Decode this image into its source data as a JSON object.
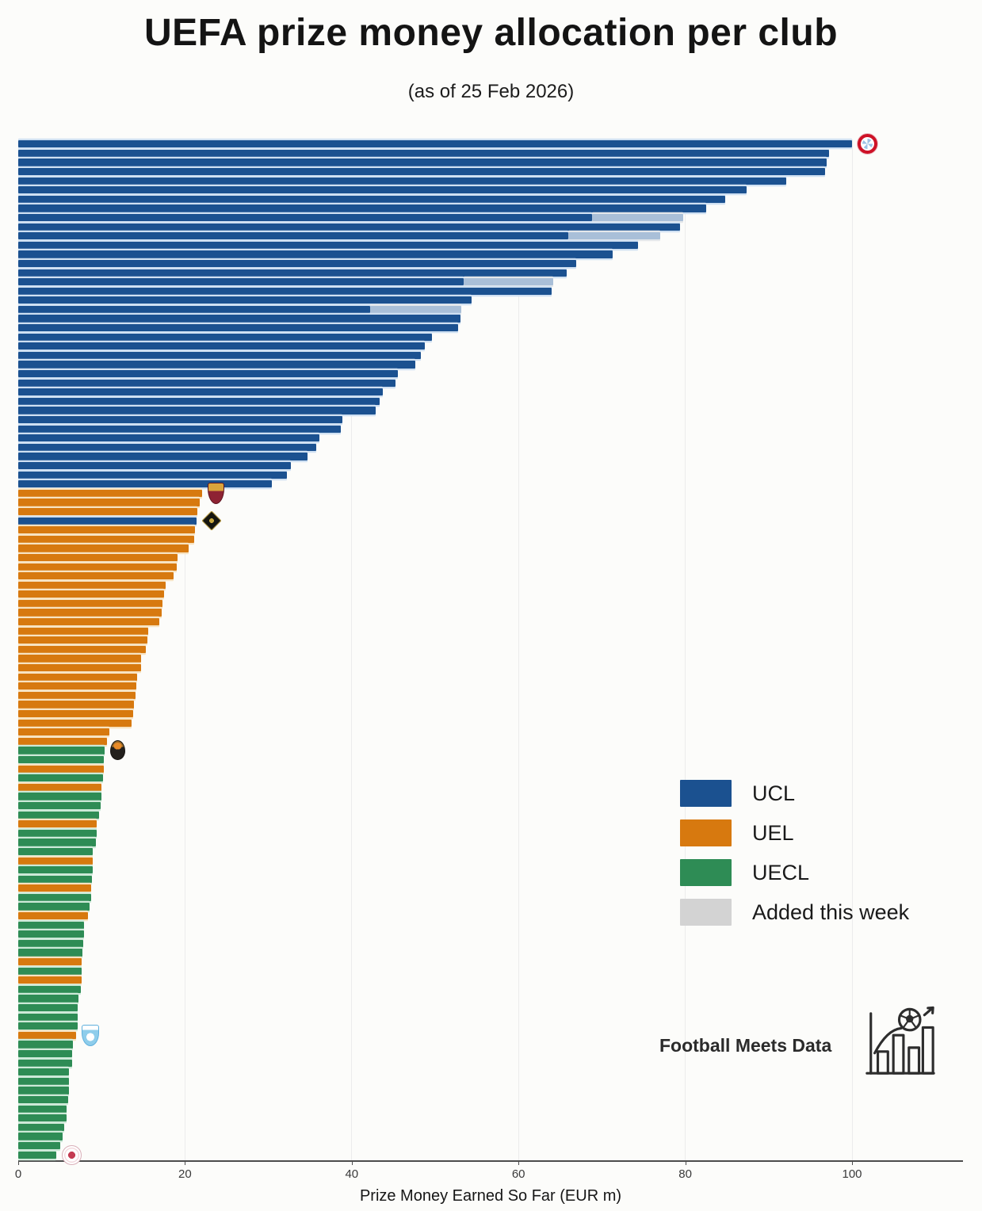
{
  "header": {
    "title": "UEFA prize money allocation per club",
    "subtitle": "(as of 25 Feb 2026)"
  },
  "footer": {
    "brand": "Football Meets Data"
  },
  "colors": {
    "UCL": "#1b5190",
    "UEL": "#d7790f",
    "UECL": "#2e8c55",
    "added_legend": "#d3d3d3",
    "added_segment": "#a9bfd8",
    "gap_tint_UCL": "#cfe0f2",
    "gap_tint_UEL": "#f7e3c2",
    "gap_tint_UECL": "#cde9d8",
    "gap_tint_added": "#e4e7ea",
    "axis_line": "#4c4c4c",
    "gridline": "#ececec"
  },
  "legend": [
    {
      "label": "UCL",
      "color": "#1b5190"
    },
    {
      "label": "UEL",
      "color": "#d7790f"
    },
    {
      "label": "UECL",
      "color": "#2e8c55"
    },
    {
      "label": "Added this week",
      "color": "#d3d3d3"
    }
  ],
  "axis": {
    "label": "Prize Money Earned So Far (EUR m)",
    "ticks": [
      0,
      20,
      40,
      60,
      80,
      100
    ],
    "max": 113
  },
  "chart_data": {
    "type": "bar",
    "orientation": "horizontal",
    "title": "UEFA prize money allocation per club",
    "subtitle": "(as of 25 Feb 2026)",
    "xlabel": "Prize Money Earned So Far (EUR m)",
    "xlim": [
      0,
      113
    ],
    "grid": "vertical, every 20 EUR m",
    "legend_position": "center-right",
    "series_legend": [
      "UCL",
      "UEL",
      "UECL",
      "Added this week"
    ],
    "note": "Each bar is one club, sorted by total prize money; 'added' is the light segment earned this week; logos mark selected clubs.",
    "bars": [
      {
        "comp": "UCL",
        "value": 100.0,
        "added": 0,
        "logo": "bayern-munich"
      },
      {
        "comp": "UCL",
        "value": 97.2,
        "added": 0
      },
      {
        "comp": "UCL",
        "value": 97.0,
        "added": 0
      },
      {
        "comp": "UCL",
        "value": 96.8,
        "added": 0
      },
      {
        "comp": "UCL",
        "value": 92.1,
        "added": 0
      },
      {
        "comp": "UCL",
        "value": 87.4,
        "added": 0
      },
      {
        "comp": "UCL",
        "value": 84.8,
        "added": 0
      },
      {
        "comp": "UCL",
        "value": 82.5,
        "added": 0
      },
      {
        "comp": "UCL",
        "value": 68.8,
        "added": 11.0
      },
      {
        "comp": "UCL",
        "value": 79.4,
        "added": 0
      },
      {
        "comp": "UCL",
        "value": 66.0,
        "added": 11.0
      },
      {
        "comp": "UCL",
        "value": 74.3,
        "added": 0
      },
      {
        "comp": "UCL",
        "value": 71.3,
        "added": 0
      },
      {
        "comp": "UCL",
        "value": 66.9,
        "added": 0
      },
      {
        "comp": "UCL",
        "value": 65.8,
        "added": 0
      },
      {
        "comp": "UCL",
        "value": 53.4,
        "added": 10.8
      },
      {
        "comp": "UCL",
        "value": 64.0,
        "added": 0
      },
      {
        "comp": "UCL",
        "value": 54.4,
        "added": 0
      },
      {
        "comp": "UCL",
        "value": 42.2,
        "added": 10.9
      },
      {
        "comp": "UCL",
        "value": 53.0,
        "added": 0
      },
      {
        "comp": "UCL",
        "value": 52.8,
        "added": 0
      },
      {
        "comp": "UCL",
        "value": 49.6,
        "added": 0
      },
      {
        "comp": "UCL",
        "value": 48.8,
        "added": 0
      },
      {
        "comp": "UCL",
        "value": 48.3,
        "added": 0
      },
      {
        "comp": "UCL",
        "value": 47.6,
        "added": 0
      },
      {
        "comp": "UCL",
        "value": 45.5,
        "added": 0
      },
      {
        "comp": "UCL",
        "value": 45.2,
        "added": 0
      },
      {
        "comp": "UCL",
        "value": 43.7,
        "added": 0
      },
      {
        "comp": "UCL",
        "value": 43.3,
        "added": 0
      },
      {
        "comp": "UCL",
        "value": 42.9,
        "added": 0
      },
      {
        "comp": "UCL",
        "value": 38.9,
        "added": 0
      },
      {
        "comp": "UCL",
        "value": 38.7,
        "added": 0
      },
      {
        "comp": "UCL",
        "value": 36.1,
        "added": 0
      },
      {
        "comp": "UCL",
        "value": 35.7,
        "added": 0
      },
      {
        "comp": "UCL",
        "value": 34.7,
        "added": 0
      },
      {
        "comp": "UCL",
        "value": 32.7,
        "added": 0
      },
      {
        "comp": "UCL",
        "value": 32.2,
        "added": 0
      },
      {
        "comp": "UCL",
        "value": 30.4,
        "added": 0
      },
      {
        "comp": "UEL",
        "value": 22.1,
        "added": 0,
        "logo": "as-roma"
      },
      {
        "comp": "UEL",
        "value": 21.8,
        "added": 0
      },
      {
        "comp": "UEL",
        "value": 21.5,
        "added": 0
      },
      {
        "comp": "UCL",
        "value": 21.4,
        "added": 0,
        "logo": "kairat-almaty"
      },
      {
        "comp": "UEL",
        "value": 21.2,
        "added": 0
      },
      {
        "comp": "UEL",
        "value": 21.1,
        "added": 0
      },
      {
        "comp": "UEL",
        "value": 20.4,
        "added": 0
      },
      {
        "comp": "UEL",
        "value": 19.1,
        "added": 0
      },
      {
        "comp": "UEL",
        "value": 19.0,
        "added": 0
      },
      {
        "comp": "UEL",
        "value": 18.6,
        "added": 0
      },
      {
        "comp": "UEL",
        "value": 17.7,
        "added": 0
      },
      {
        "comp": "UEL",
        "value": 17.5,
        "added": 0
      },
      {
        "comp": "UEL",
        "value": 17.3,
        "added": 0
      },
      {
        "comp": "UEL",
        "value": 17.2,
        "added": 0
      },
      {
        "comp": "UEL",
        "value": 16.9,
        "added": 0
      },
      {
        "comp": "UEL",
        "value": 15.6,
        "added": 0
      },
      {
        "comp": "UEL",
        "value": 15.5,
        "added": 0
      },
      {
        "comp": "UEL",
        "value": 15.3,
        "added": 0
      },
      {
        "comp": "UEL",
        "value": 14.7,
        "added": 0
      },
      {
        "comp": "UEL",
        "value": 14.7,
        "added": 0
      },
      {
        "comp": "UEL",
        "value": 14.3,
        "added": 0
      },
      {
        "comp": "UEL",
        "value": 14.2,
        "added": 0
      },
      {
        "comp": "UEL",
        "value": 14.1,
        "added": 0
      },
      {
        "comp": "UEL",
        "value": 13.9,
        "added": 0
      },
      {
        "comp": "UEL",
        "value": 13.8,
        "added": 0
      },
      {
        "comp": "UEL",
        "value": 13.6,
        "added": 0
      },
      {
        "comp": "UEL",
        "value": 10.9,
        "added": 0
      },
      {
        "comp": "UEL",
        "value": 10.6,
        "added": 0
      },
      {
        "comp": "UECL",
        "value": 10.4,
        "added": 0,
        "logo": "shakhtar-donetsk"
      },
      {
        "comp": "UECL",
        "value": 10.3,
        "added": 0
      },
      {
        "comp": "UEL",
        "value": 10.3,
        "added": 0
      },
      {
        "comp": "UECL",
        "value": 10.2,
        "added": 0
      },
      {
        "comp": "UEL",
        "value": 10.0,
        "added": 0
      },
      {
        "comp": "UECL",
        "value": 10.0,
        "added": 0
      },
      {
        "comp": "UECL",
        "value": 9.9,
        "added": 0
      },
      {
        "comp": "UECL",
        "value": 9.7,
        "added": 0
      },
      {
        "comp": "UEL",
        "value": 9.4,
        "added": 0
      },
      {
        "comp": "UECL",
        "value": 9.4,
        "added": 0
      },
      {
        "comp": "UECL",
        "value": 9.3,
        "added": 0
      },
      {
        "comp": "UECL",
        "value": 8.9,
        "added": 0
      },
      {
        "comp": "UEL",
        "value": 8.9,
        "added": 0
      },
      {
        "comp": "UECL",
        "value": 8.9,
        "added": 0
      },
      {
        "comp": "UECL",
        "value": 8.8,
        "added": 0
      },
      {
        "comp": "UEL",
        "value": 8.7,
        "added": 0
      },
      {
        "comp": "UECL",
        "value": 8.7,
        "added": 0
      },
      {
        "comp": "UECL",
        "value": 8.6,
        "added": 0
      },
      {
        "comp": "UEL",
        "value": 8.4,
        "added": 0
      },
      {
        "comp": "UECL",
        "value": 7.9,
        "added": 0
      },
      {
        "comp": "UECL",
        "value": 7.9,
        "added": 0
      },
      {
        "comp": "UECL",
        "value": 7.8,
        "added": 0
      },
      {
        "comp": "UECL",
        "value": 7.7,
        "added": 0
      },
      {
        "comp": "UEL",
        "value": 7.6,
        "added": 0
      },
      {
        "comp": "UECL",
        "value": 7.6,
        "added": 0
      },
      {
        "comp": "UEL",
        "value": 7.6,
        "added": 0
      },
      {
        "comp": "UECL",
        "value": 7.5,
        "added": 0
      },
      {
        "comp": "UECL",
        "value": 7.2,
        "added": 0
      },
      {
        "comp": "UECL",
        "value": 7.1,
        "added": 0
      },
      {
        "comp": "UECL",
        "value": 7.1,
        "added": 0
      },
      {
        "comp": "UECL",
        "value": 7.1,
        "added": 0
      },
      {
        "comp": "UEL",
        "value": 6.9,
        "added": 0,
        "logo": "malmo-ff"
      },
      {
        "comp": "UECL",
        "value": 6.6,
        "added": 0
      },
      {
        "comp": "UECL",
        "value": 6.5,
        "added": 0
      },
      {
        "comp": "UECL",
        "value": 6.5,
        "added": 0
      },
      {
        "comp": "UECL",
        "value": 6.1,
        "added": 0
      },
      {
        "comp": "UECL",
        "value": 6.1,
        "added": 0
      },
      {
        "comp": "UECL",
        "value": 6.1,
        "added": 0
      },
      {
        "comp": "UECL",
        "value": 6.0,
        "added": 0
      },
      {
        "comp": "UECL",
        "value": 5.8,
        "added": 0
      },
      {
        "comp": "UECL",
        "value": 5.8,
        "added": 0
      },
      {
        "comp": "UECL",
        "value": 5.5,
        "added": 0
      },
      {
        "comp": "UECL",
        "value": 5.3,
        "added": 0
      },
      {
        "comp": "UECL",
        "value": 5.0,
        "added": 0
      },
      {
        "comp": "UECL",
        "value": 4.6,
        "added": 0,
        "logo": "red-white-crest"
      }
    ]
  }
}
